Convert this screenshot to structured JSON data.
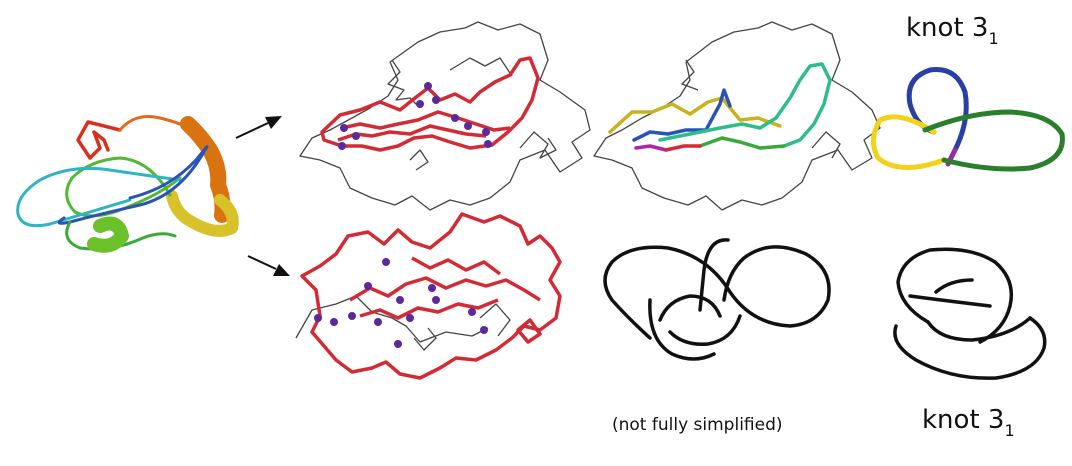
{
  "labels": {
    "knot_top": "knot 3",
    "knot_top_sub": "1",
    "knot_bottom": "knot 3",
    "knot_bottom_sub": "1",
    "not_simplified": "(not fully simplified)"
  },
  "colors": {
    "backbone": "#333333",
    "highlight": "#d42a34",
    "bead": "#5b2a9a",
    "knot_blue": "#2a3fa6",
    "knot_yellow": "#f2d21b",
    "knot_green": "#2a7f2c",
    "knot_purple": "#9a2aa6",
    "black": "#111111"
  }
}
